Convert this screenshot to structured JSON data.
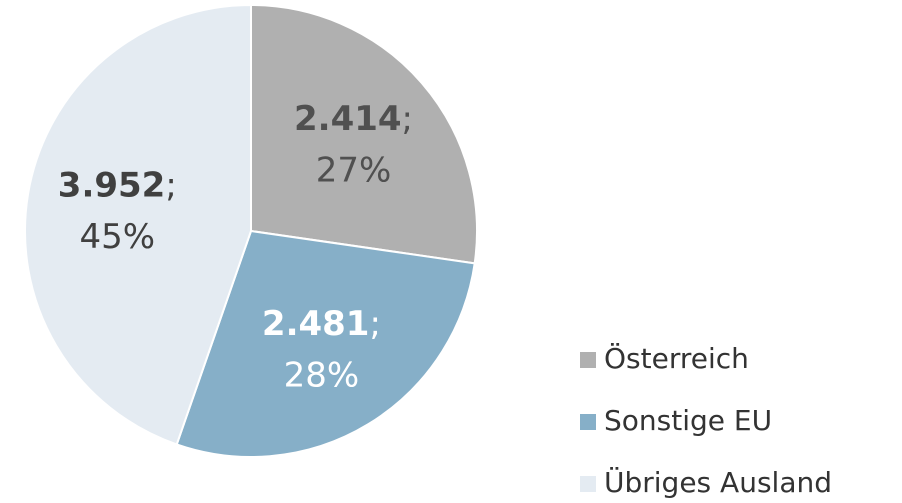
{
  "chart_data": {
    "type": "pie",
    "categories": [
      "Österreich",
      "Sonstige EU",
      "Übriges Ausland"
    ],
    "values": [
      2414,
      2481,
      3952
    ],
    "value_labels": [
      "2.414",
      "2.481",
      "3.952"
    ],
    "label_separator": ";",
    "percentages": [
      27,
      28,
      45
    ],
    "percentage_labels": [
      "27%",
      "28%",
      "45%"
    ],
    "colors": [
      "#b0b0b0",
      "#86afc8",
      "#e4ebf2"
    ],
    "label_colors": [
      "#505050",
      "#ffffff",
      "#404040"
    ],
    "legend": "bottom-right"
  }
}
